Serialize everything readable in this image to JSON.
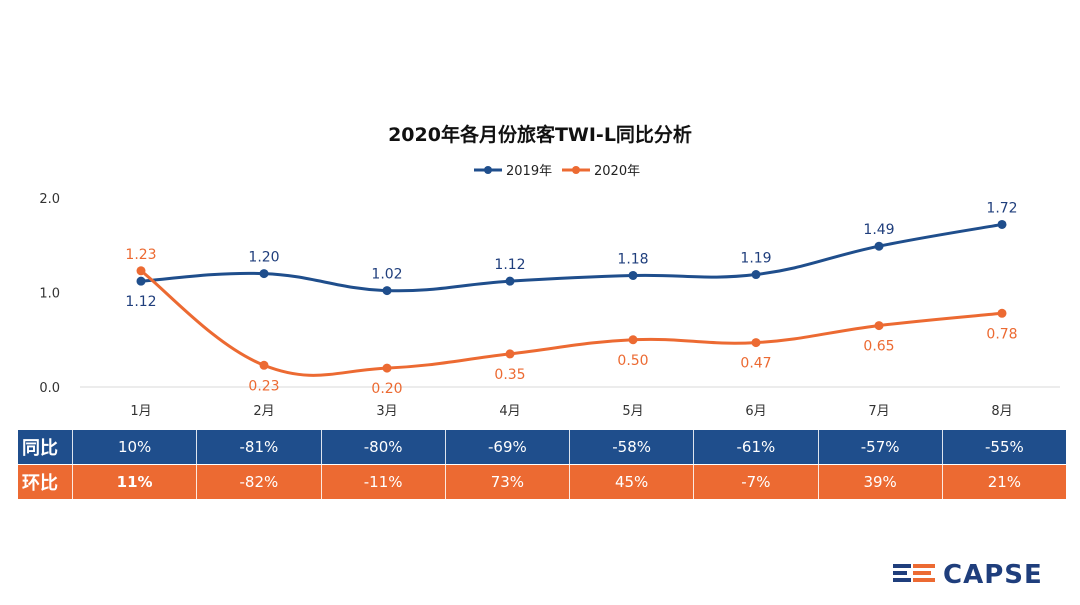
{
  "chart_data": {
    "type": "line",
    "title": "2020年各月份旅客TWI-L同比分析",
    "categories": [
      "1月",
      "2月",
      "3月",
      "4月",
      "5月",
      "6月",
      "7月",
      "8月"
    ],
    "ylim": [
      0,
      2.0
    ],
    "yticks": [
      "0.0",
      "1.0",
      "2.0"
    ],
    "grid": false,
    "legend": "top",
    "series": [
      {
        "name": "2019年",
        "color": "#1f4e8c",
        "values": [
          1.12,
          1.2,
          1.02,
          1.12,
          1.18,
          1.19,
          1.49,
          1.72
        ],
        "labels": [
          "1.12",
          "1.20",
          "1.02",
          "1.12",
          "1.18",
          "1.19",
          "1.49",
          "1.72"
        ]
      },
      {
        "name": "2020年",
        "color": "#ec6a32",
        "values": [
          1.23,
          0.23,
          0.2,
          0.35,
          0.5,
          0.47,
          0.65,
          0.78
        ],
        "labels": [
          "1.23",
          "0.23",
          "0.20",
          "0.35",
          "0.50",
          "0.47",
          "0.65",
          "0.78"
        ]
      }
    ]
  },
  "table": {
    "yoy": {
      "label": "同比",
      "values": [
        "10%",
        "-81%",
        "-80%",
        "-69%",
        "-58%",
        "-61%",
        "-57%",
        "-55%"
      ]
    },
    "mom": {
      "label": "环比",
      "values": [
        "11%",
        "-82%",
        "-11%",
        "73%",
        "45%",
        "-7%",
        "39%",
        "21%"
      ]
    }
  },
  "logo": {
    "text": "CAPSE"
  }
}
